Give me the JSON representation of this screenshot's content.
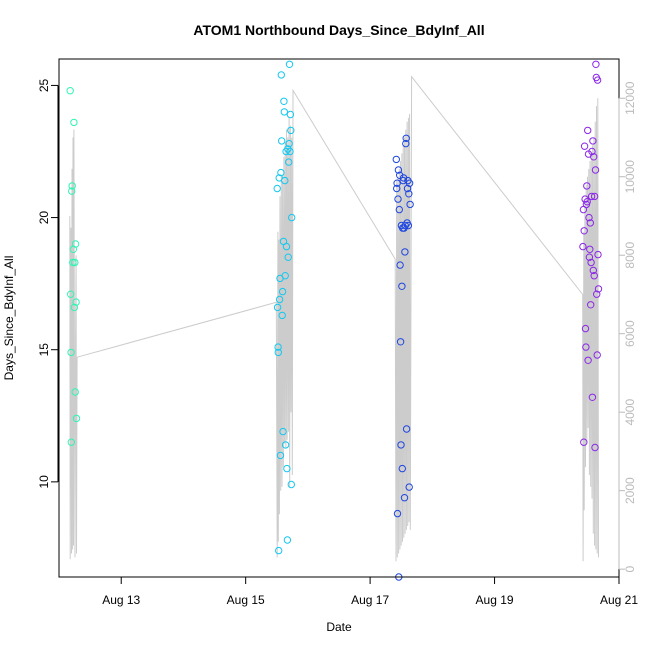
{
  "chart_data": {
    "type": "scatter",
    "title": "ATOM1 Northbound Days_Since_BdyInf_All",
    "xlabel": "Date",
    "ylabel": "Days_Since_BdyInf_All",
    "xlim": [
      "2021-08-12T00:00",
      "2021-08-21T00:00"
    ],
    "ylim": [
      6.4,
      26.0
    ],
    "y_ticks": [
      10,
      15,
      20,
      25
    ],
    "x_ticks": [
      {
        "value": "2021-08-13",
        "label": "Aug 13"
      },
      {
        "value": "2021-08-15",
        "label": "Aug 15"
      },
      {
        "value": "2021-08-17",
        "label": "Aug 17"
      },
      {
        "value": "2021-08-19",
        "label": "Aug 19"
      },
      {
        "value": "2021-08-21",
        "label": "Aug 21"
      }
    ],
    "y2lim": [
      -200,
      13000
    ],
    "y2_ticks": [
      0,
      2000,
      4000,
      6000,
      8000,
      10000,
      12000
    ],
    "grid": false,
    "series": [
      {
        "color": "#2EF5B5",
        "points": [
          [
            "2021-08-12T04:20",
            24.8
          ],
          [
            "2021-08-12T04:30",
            17.1
          ],
          [
            "2021-08-12T04:40",
            14.9
          ],
          [
            "2021-08-12T04:45",
            11.5
          ],
          [
            "2021-08-12T04:55",
            21.0
          ],
          [
            "2021-08-12T05:05",
            21.2
          ],
          [
            "2021-08-12T05:20",
            18.3
          ],
          [
            "2021-08-12T05:30",
            18.8
          ],
          [
            "2021-08-12T05:45",
            23.6
          ],
          [
            "2021-08-12T05:55",
            16.6
          ],
          [
            "2021-08-12T06:05",
            18.3
          ],
          [
            "2021-08-12T06:15",
            13.4
          ],
          [
            "2021-08-12T06:25",
            19.0
          ],
          [
            "2021-08-12T06:35",
            16.8
          ],
          [
            "2021-08-12T06:45",
            12.4
          ]
        ]
      },
      {
        "color": "#14C8F0",
        "points": [
          [
            "2021-08-15T12:10",
            21.1
          ],
          [
            "2021-08-15T12:20",
            16.6
          ],
          [
            "2021-08-15T12:30",
            15.1
          ],
          [
            "2021-08-15T12:35",
            14.9
          ],
          [
            "2021-08-15T12:45",
            7.4
          ],
          [
            "2021-08-15T12:55",
            21.5
          ],
          [
            "2021-08-15T13:05",
            16.9
          ],
          [
            "2021-08-15T13:15",
            17.7
          ],
          [
            "2021-08-15T13:25",
            11.0
          ],
          [
            "2021-08-15T13:35",
            21.7
          ],
          [
            "2021-08-15T13:45",
            25.4
          ],
          [
            "2021-08-15T13:55",
            22.9
          ],
          [
            "2021-08-15T14:05",
            16.3
          ],
          [
            "2021-08-15T14:15",
            17.2
          ],
          [
            "2021-08-15T14:25",
            11.9
          ],
          [
            "2021-08-15T14:35",
            19.1
          ],
          [
            "2021-08-15T14:45",
            24.4
          ],
          [
            "2021-08-15T14:55",
            24.0
          ],
          [
            "2021-08-15T15:05",
            21.4
          ],
          [
            "2021-08-15T15:15",
            17.8
          ],
          [
            "2021-08-15T15:25",
            11.4
          ],
          [
            "2021-08-15T15:35",
            22.5
          ],
          [
            "2021-08-15T15:45",
            18.9
          ],
          [
            "2021-08-15T15:55",
            10.5
          ],
          [
            "2021-08-15T16:05",
            7.8
          ],
          [
            "2021-08-15T16:15",
            22.6
          ],
          [
            "2021-08-15T16:25",
            18.5
          ],
          [
            "2021-08-15T16:35",
            22.1
          ],
          [
            "2021-08-15T16:45",
            22.8
          ],
          [
            "2021-08-15T16:55",
            25.8
          ],
          [
            "2021-08-15T17:05",
            22.5
          ],
          [
            "2021-08-15T17:15",
            23.9
          ],
          [
            "2021-08-15T17:25",
            23.3
          ],
          [
            "2021-08-15T17:35",
            9.9
          ],
          [
            "2021-08-15T17:45",
            20.0
          ]
        ]
      },
      {
        "color": "#1E46E0",
        "points": [
          [
            "2021-08-17T10:05",
            22.2
          ],
          [
            "2021-08-17T10:15",
            21.1
          ],
          [
            "2021-08-17T10:25",
            21.3
          ],
          [
            "2021-08-17T10:35",
            8.8
          ],
          [
            "2021-08-17T10:45",
            20.7
          ],
          [
            "2021-08-17T10:55",
            21.8
          ],
          [
            "2021-08-17T11:05",
            6.4
          ],
          [
            "2021-08-17T11:15",
            20.3
          ],
          [
            "2021-08-17T11:25",
            21.6
          ],
          [
            "2021-08-17T11:35",
            18.2
          ],
          [
            "2021-08-17T11:45",
            15.3
          ],
          [
            "2021-08-17T11:55",
            11.4
          ],
          [
            "2021-08-17T12:05",
            19.7
          ],
          [
            "2021-08-17T12:15",
            17.4
          ],
          [
            "2021-08-17T12:25",
            10.5
          ],
          [
            "2021-08-17T12:35",
            19.6
          ],
          [
            "2021-08-17T12:45",
            21.4
          ],
          [
            "2021-08-17T12:55",
            21.5
          ],
          [
            "2021-08-17T13:05",
            19.6
          ],
          [
            "2021-08-17T13:15",
            9.4
          ],
          [
            "2021-08-17T13:25",
            18.7
          ],
          [
            "2021-08-17T13:35",
            19.7
          ],
          [
            "2021-08-17T13:45",
            22.8
          ],
          [
            "2021-08-17T13:55",
            23.0
          ],
          [
            "2021-08-17T14:05",
            12.0
          ],
          [
            "2021-08-17T14:15",
            19.8
          ],
          [
            "2021-08-17T14:25",
            21.1
          ],
          [
            "2021-08-17T14:35",
            21.4
          ],
          [
            "2021-08-17T14:45",
            19.7
          ],
          [
            "2021-08-17T14:55",
            20.9
          ],
          [
            "2021-08-17T15:05",
            9.8
          ],
          [
            "2021-08-17T15:15",
            21.3
          ],
          [
            "2021-08-17T15:25",
            20.5
          ]
        ]
      },
      {
        "color": "#8C28E8",
        "points": [
          [
            "2021-08-20T10:05",
            18.9
          ],
          [
            "2021-08-20T10:15",
            20.3
          ],
          [
            "2021-08-20T10:25",
            11.5
          ],
          [
            "2021-08-20T10:35",
            19.5
          ],
          [
            "2021-08-20T10:45",
            22.7
          ],
          [
            "2021-08-20T10:55",
            20.7
          ],
          [
            "2021-08-20T11:05",
            15.8
          ],
          [
            "2021-08-20T11:15",
            15.1
          ],
          [
            "2021-08-20T11:25",
            20.5
          ],
          [
            "2021-08-20T11:35",
            21.2
          ],
          [
            "2021-08-20T11:45",
            20.6
          ],
          [
            "2021-08-20T11:55",
            23.3
          ],
          [
            "2021-08-20T12:05",
            14.6
          ],
          [
            "2021-08-20T12:15",
            22.4
          ],
          [
            "2021-08-20T12:25",
            20.0
          ],
          [
            "2021-08-20T12:35",
            18.5
          ],
          [
            "2021-08-20T12:45",
            18.8
          ],
          [
            "2021-08-20T12:55",
            19.8
          ],
          [
            "2021-08-20T13:05",
            16.7
          ],
          [
            "2021-08-20T13:15",
            18.3
          ],
          [
            "2021-08-20T13:25",
            20.8
          ],
          [
            "2021-08-20T13:35",
            22.5
          ],
          [
            "2021-08-20T13:45",
            13.2
          ],
          [
            "2021-08-20T13:55",
            22.9
          ],
          [
            "2021-08-20T14:05",
            18.0
          ],
          [
            "2021-08-20T14:15",
            22.3
          ],
          [
            "2021-08-20T14:25",
            17.8
          ],
          [
            "2021-08-20T14:35",
            20.8
          ],
          [
            "2021-08-20T14:45",
            11.3
          ],
          [
            "2021-08-20T14:55",
            21.8
          ],
          [
            "2021-08-20T15:05",
            25.8
          ],
          [
            "2021-08-20T15:15",
            25.3
          ],
          [
            "2021-08-20T15:25",
            17.1
          ],
          [
            "2021-08-20T15:35",
            14.8
          ],
          [
            "2021-08-20T15:45",
            25.2
          ],
          [
            "2021-08-20T15:55",
            18.6
          ],
          [
            "2021-08-20T16:05",
            17.3
          ]
        ]
      }
    ],
    "overlay_line": {
      "color": "#cccccc",
      "axis": "right",
      "points": [
        [
          "2021-08-12T04:10",
          9000
        ],
        [
          "2021-08-12T04:20",
          250
        ],
        [
          "2021-08-12T04:35",
          8700
        ],
        [
          "2021-08-12T04:50",
          400
        ],
        [
          "2021-08-12T05:00",
          10200
        ],
        [
          "2021-08-12T05:10",
          500
        ],
        [
          "2021-08-12T05:25",
          11000
        ],
        [
          "2021-08-12T05:35",
          600
        ],
        [
          "2021-08-12T05:45",
          11200
        ],
        [
          "2021-08-12T05:55",
          7000
        ],
        [
          "2021-08-12T06:10",
          300
        ],
        [
          "2021-08-12T06:25",
          6000
        ],
        [
          "2021-08-12T06:35",
          8000
        ],
        [
          "2021-08-12T06:45",
          400
        ],
        [
          "2021-08-12T07:00",
          5400
        ],
        [
          "2021-08-15T11:50",
          6800
        ],
        [
          "2021-08-15T12:10",
          300
        ],
        [
          "2021-08-15T12:25",
          8600
        ],
        [
          "2021-08-15T12:35",
          700
        ],
        [
          "2021-08-15T12:50",
          8400
        ],
        [
          "2021-08-15T13:00",
          1400
        ],
        [
          "2021-08-15T13:15",
          9500
        ],
        [
          "2021-08-15T13:30",
          2000
        ],
        [
          "2021-08-15T13:45",
          10000
        ],
        [
          "2021-08-15T14:00",
          2100
        ],
        [
          "2021-08-15T14:15",
          9900
        ],
        [
          "2021-08-15T14:30",
          2600
        ],
        [
          "2021-08-15T14:45",
          10500
        ],
        [
          "2021-08-15T15:00",
          3200
        ],
        [
          "2021-08-15T15:15",
          10900
        ],
        [
          "2021-08-15T15:30",
          3100
        ],
        [
          "2021-08-15T15:45",
          11200
        ],
        [
          "2021-08-15T16:00",
          3300
        ],
        [
          "2021-08-15T16:15",
          11000
        ],
        [
          "2021-08-15T16:30",
          3500
        ],
        [
          "2021-08-15T16:45",
          11500
        ],
        [
          "2021-08-15T17:00",
          2100
        ],
        [
          "2021-08-15T17:15",
          11300
        ],
        [
          "2021-08-15T17:30",
          4000
        ],
        [
          "2021-08-15T17:45",
          11000
        ],
        [
          "2021-08-15T18:00",
          2400
        ],
        [
          "2021-08-15T18:15",
          12200
        ],
        [
          "2021-08-17T09:40",
          7900
        ],
        [
          "2021-08-17T10:00",
          200
        ],
        [
          "2021-08-17T10:15",
          9900
        ],
        [
          "2021-08-17T10:30",
          300
        ],
        [
          "2021-08-17T10:45",
          10000
        ],
        [
          "2021-08-17T11:00",
          400
        ],
        [
          "2021-08-17T11:15",
          10200
        ],
        [
          "2021-08-17T11:30",
          500
        ],
        [
          "2021-08-17T11:45",
          10400
        ],
        [
          "2021-08-17T12:00",
          600
        ],
        [
          "2021-08-17T12:15",
          10600
        ],
        [
          "2021-08-17T12:30",
          700
        ],
        [
          "2021-08-17T12:45",
          10800
        ],
        [
          "2021-08-17T13:00",
          800
        ],
        [
          "2021-08-17T13:15",
          11000
        ],
        [
          "2021-08-17T13:30",
          900
        ],
        [
          "2021-08-17T13:45",
          11200
        ],
        [
          "2021-08-17T14:00",
          1000
        ],
        [
          "2021-08-17T14:15",
          11400
        ],
        [
          "2021-08-17T14:30",
          1100
        ],
        [
          "2021-08-17T14:45",
          11500
        ],
        [
          "2021-08-17T15:00",
          1200
        ],
        [
          "2021-08-17T15:15",
          11600
        ],
        [
          "2021-08-17T15:30",
          1000
        ],
        [
          "2021-08-17T16:00",
          12550
        ],
        [
          "2021-08-20T10:00",
          7000
        ],
        [
          "2021-08-20T10:10",
          200
        ],
        [
          "2021-08-20T10:25",
          8600
        ],
        [
          "2021-08-20T10:35",
          1500
        ],
        [
          "2021-08-20T10:50",
          9300
        ],
        [
          "2021-08-20T11:05",
          2600
        ],
        [
          "2021-08-20T11:20",
          9800
        ],
        [
          "2021-08-20T11:35",
          3200
        ],
        [
          "2021-08-20T11:50",
          10000
        ],
        [
          "2021-08-20T12:05",
          3600
        ],
        [
          "2021-08-20T12:20",
          10200
        ],
        [
          "2021-08-20T12:35",
          2400
        ],
        [
          "2021-08-20T12:50",
          10400
        ],
        [
          "2021-08-20T13:05",
          2100
        ],
        [
          "2021-08-20T13:20",
          10600
        ],
        [
          "2021-08-20T13:35",
          1800
        ],
        [
          "2021-08-20T13:50",
          10800
        ],
        [
          "2021-08-20T14:05",
          900
        ],
        [
          "2021-08-20T14:20",
          11000
        ],
        [
          "2021-08-20T14:35",
          600
        ],
        [
          "2021-08-20T14:50",
          11400
        ],
        [
          "2021-08-20T15:05",
          500
        ],
        [
          "2021-08-20T15:20",
          11800
        ],
        [
          "2021-08-20T15:35",
          400
        ],
        [
          "2021-08-20T15:50",
          12000
        ],
        [
          "2021-08-20T16:05",
          300
        ]
      ]
    }
  }
}
